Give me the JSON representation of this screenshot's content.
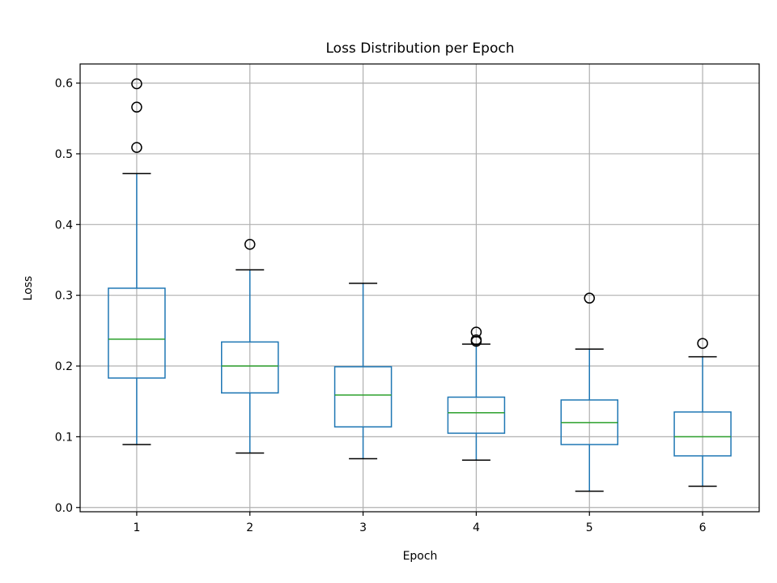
{
  "chart_data": {
    "type": "box",
    "title": "Loss Distribution per Epoch",
    "xlabel": "Epoch",
    "ylabel": "Loss",
    "ylim": [
      -0.006,
      0.627
    ],
    "yticks": [
      0.0,
      0.1,
      0.2,
      0.3,
      0.4,
      0.5,
      0.6
    ],
    "ytick_labels": [
      "0.0",
      "0.1",
      "0.2",
      "0.3",
      "0.4",
      "0.5",
      "0.6"
    ],
    "grid": true,
    "categories": [
      "1",
      "2",
      "3",
      "4",
      "5",
      "6"
    ],
    "boxes": [
      {
        "whislo": 0.089,
        "q1": 0.183,
        "med": 0.238,
        "q3": 0.31,
        "whishi": 0.472,
        "fliers": [
          0.509,
          0.566,
          0.599
        ]
      },
      {
        "whislo": 0.077,
        "q1": 0.162,
        "med": 0.2,
        "q3": 0.234,
        "whishi": 0.336,
        "fliers": [
          0.372
        ]
      },
      {
        "whislo": 0.069,
        "q1": 0.114,
        "med": 0.159,
        "q3": 0.199,
        "whishi": 0.317,
        "fliers": []
      },
      {
        "whislo": 0.067,
        "q1": 0.105,
        "med": 0.134,
        "q3": 0.156,
        "whishi": 0.231,
        "fliers": [
          0.235,
          0.237,
          0.248
        ]
      },
      {
        "whislo": 0.023,
        "q1": 0.089,
        "med": 0.12,
        "q3": 0.152,
        "whishi": 0.224,
        "fliers": [
          0.296
        ]
      },
      {
        "whislo": 0.03,
        "q1": 0.073,
        "med": 0.1,
        "q3": 0.135,
        "whishi": 0.213,
        "fliers": [
          0.232
        ]
      }
    ],
    "colors": {
      "box": "#1f77b4",
      "median": "#2ca02c",
      "whisker_cap": "#000000",
      "grid": "#b0b0b0",
      "flier": "#000000"
    }
  }
}
